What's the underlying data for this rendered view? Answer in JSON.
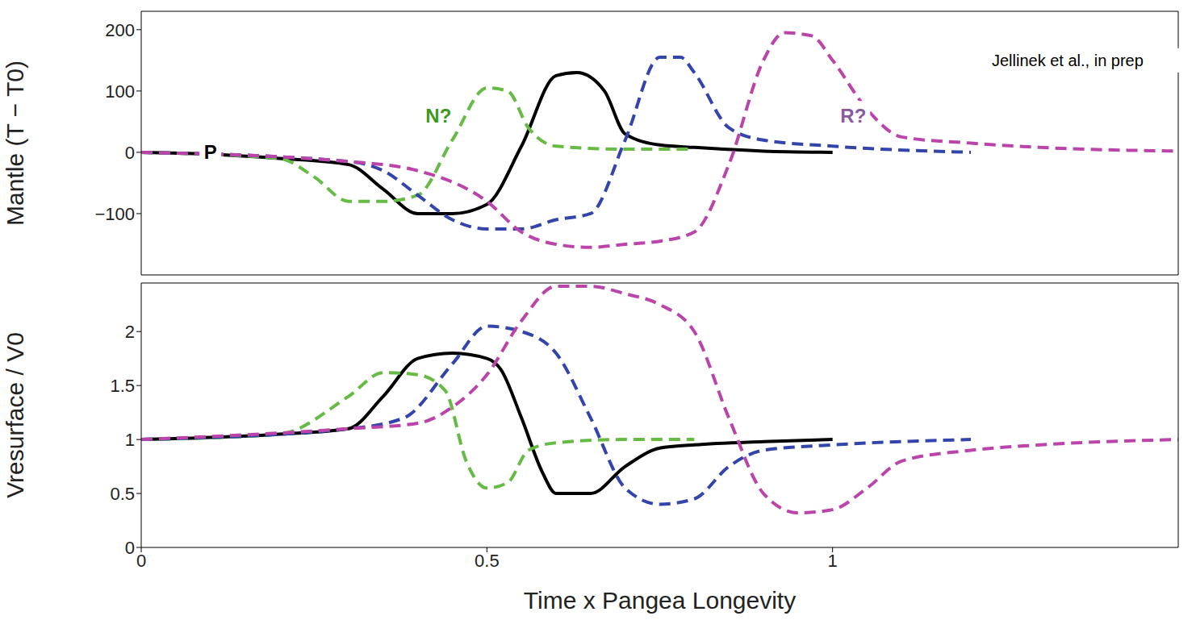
{
  "chart_data": [
    {
      "type": "line",
      "ylabel": "Mantle (T − T0)",
      "xlim": [
        0,
        1.5
      ],
      "xticks": [
        0,
        0.5,
        1
      ],
      "ylim": [
        -200,
        230
      ],
      "yticks": [
        {
          "value": -100,
          "label": "−100"
        },
        0,
        100,
        200
      ],
      "tick_labels": "y",
      "grid": false,
      "series": [
        {
          "color": "#000000",
          "line_style": "solid",
          "x": [
            0,
            0.1,
            0.2,
            0.3,
            0.35,
            0.4,
            0.45,
            0.5,
            0.55,
            0.6,
            0.63,
            0.67,
            0.7,
            0.75,
            0.8,
            0.9,
            1.0
          ],
          "values": [
            0,
            -3,
            -10,
            -20,
            -60,
            -100,
            -100,
            -85,
            10,
            125,
            130,
            100,
            30,
            12,
            8,
            2,
            0
          ]
        },
        {
          "color": "#66bb44",
          "line_style": "dashed",
          "x": [
            0,
            0.2,
            0.25,
            0.3,
            0.35,
            0.4,
            0.45,
            0.5,
            0.53,
            0.56,
            0.6,
            0.7,
            0.8
          ],
          "values": [
            0,
            -10,
            -40,
            -80,
            -80,
            -70,
            20,
            105,
            100,
            40,
            10,
            5,
            5
          ]
        },
        {
          "color": "#3344aa",
          "line_style": "dashed",
          "x": [
            0,
            0.3,
            0.35,
            0.4,
            0.45,
            0.5,
            0.55,
            0.6,
            0.65,
            0.7,
            0.75,
            0.78,
            0.8,
            0.85,
            0.9,
            1.0,
            1.2
          ],
          "values": [
            0,
            -15,
            -30,
            -70,
            -110,
            -125,
            -125,
            -110,
            -100,
            20,
            155,
            155,
            130,
            40,
            20,
            10,
            0
          ]
        },
        {
          "color": "#bb44aa",
          "line_style": "dashed",
          "x": [
            0,
            0.3,
            0.4,
            0.5,
            0.55,
            0.6,
            0.65,
            0.7,
            0.75,
            0.8,
            0.85,
            0.9,
            0.93,
            0.97,
            1.0,
            1.05,
            1.1,
            1.2,
            1.3,
            1.5
          ],
          "values": [
            0,
            -15,
            -30,
            -80,
            -130,
            -150,
            -155,
            -150,
            -145,
            -130,
            -20,
            150,
            195,
            190,
            150,
            70,
            25,
            15,
            8,
            2
          ]
        }
      ],
      "annotations": [
        {
          "text": "P",
          "x": 0.1,
          "y": 0,
          "color": "#000000"
        },
        {
          "text": "N?",
          "x": 0.43,
          "y": 60,
          "color": "#3a9a1a"
        },
        {
          "text": "R?",
          "x": 1.03,
          "y": 60,
          "color": "#8a5aa0"
        },
        {
          "text": "Jellinek et al., in prep",
          "x": 1.34,
          "y": 150,
          "color": "#000000"
        }
      ]
    },
    {
      "type": "line",
      "ylabel": "Vresurface / V0",
      "xlabel": "Time x Pangea Longevity",
      "xlim": [
        0,
        1.5
      ],
      "xticks": [
        0,
        0.5,
        1
      ],
      "ylim": [
        0,
        2.45
      ],
      "yticks": [
        0,
        0.5,
        1,
        1.5,
        2
      ],
      "grid": false,
      "series": [
        {
          "color": "#000000",
          "line_style": "solid",
          "x": [
            0,
            0.2,
            0.3,
            0.35,
            0.4,
            0.45,
            0.5,
            0.52,
            0.55,
            0.58,
            0.6,
            0.65,
            0.7,
            0.75,
            0.8,
            0.9,
            1.0
          ],
          "values": [
            1,
            1.05,
            1.1,
            1.4,
            1.75,
            1.8,
            1.75,
            1.65,
            1.2,
            0.7,
            0.5,
            0.5,
            0.75,
            0.92,
            0.95,
            0.98,
            1.0
          ]
        },
        {
          "color": "#66bb44",
          "line_style": "dashed",
          "x": [
            0,
            0.2,
            0.3,
            0.35,
            0.4,
            0.44,
            0.47,
            0.5,
            0.53,
            0.56,
            0.6,
            0.7,
            0.8
          ],
          "values": [
            1,
            1.05,
            1.4,
            1.62,
            1.6,
            1.45,
            0.8,
            0.55,
            0.6,
            0.9,
            0.97,
            1.0,
            1.0
          ]
        },
        {
          "color": "#3344aa",
          "line_style": "dashed",
          "x": [
            0,
            0.3,
            0.38,
            0.45,
            0.5,
            0.55,
            0.6,
            0.65,
            0.7,
            0.75,
            0.8,
            0.85,
            0.9,
            1.0,
            1.2
          ],
          "values": [
            1,
            1.1,
            1.2,
            1.7,
            2.05,
            2.0,
            1.8,
            1.2,
            0.55,
            0.4,
            0.45,
            0.75,
            0.9,
            0.95,
            1.0
          ]
        },
        {
          "color": "#bb44aa",
          "line_style": "dashed",
          "x": [
            0,
            0.3,
            0.4,
            0.45,
            0.5,
            0.55,
            0.6,
            0.65,
            0.7,
            0.75,
            0.8,
            0.85,
            0.9,
            0.95,
            1.0,
            1.05,
            1.1,
            1.2,
            1.3,
            1.5
          ],
          "values": [
            1,
            1.1,
            1.15,
            1.3,
            1.6,
            2.1,
            2.42,
            2.42,
            2.35,
            2.25,
            2.0,
            1.2,
            0.5,
            0.32,
            0.35,
            0.55,
            0.8,
            0.9,
            0.95,
            1.0
          ]
        }
      ]
    }
  ]
}
